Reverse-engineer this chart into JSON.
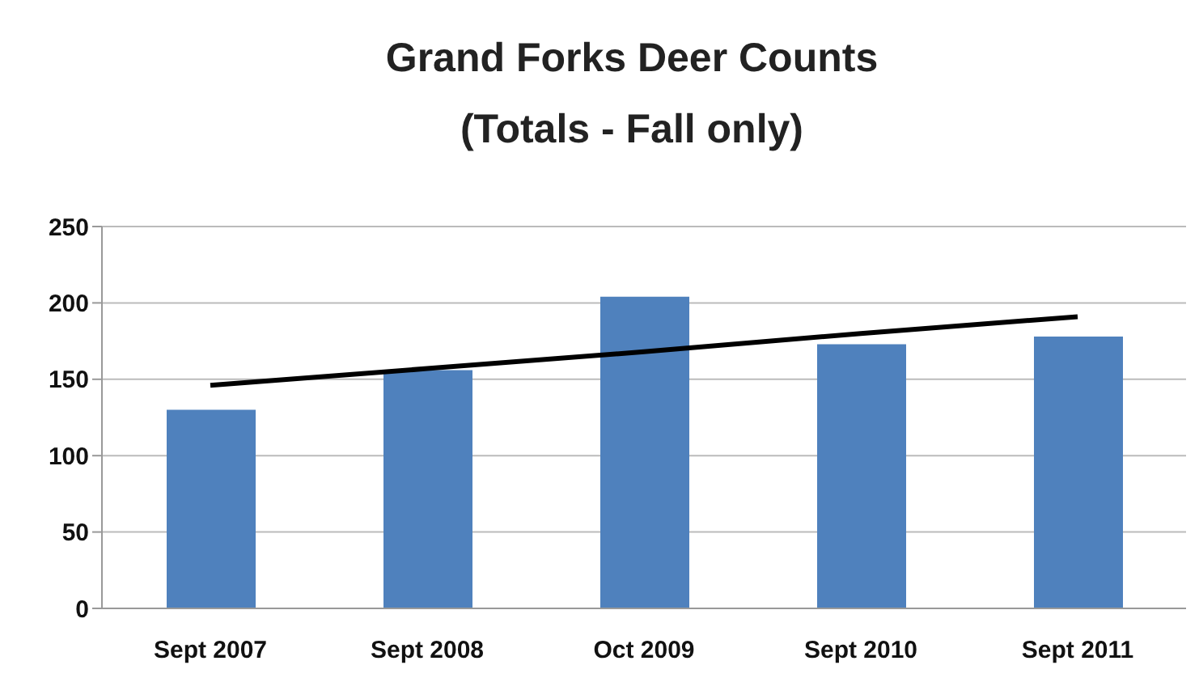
{
  "chart_data": {
    "type": "bar",
    "title": "Grand Forks Deer Counts",
    "subtitle": "(Totals - Fall only)",
    "categories": [
      "Sept 2007",
      "Sept 2008",
      "Oct 2009",
      "Sept 2010",
      "Sept 2011"
    ],
    "series": [
      {
        "color": "#4f81bd",
        "values": [
          130,
          156,
          204,
          173,
          178
        ]
      },
      {
        "type": "line",
        "color": "#000000",
        "values": [
          146,
          157,
          168,
          180,
          191
        ]
      }
    ],
    "ylim": [
      0,
      250
    ],
    "yticks": [
      0,
      50,
      100,
      150,
      200,
      250
    ],
    "grid": "y",
    "legend": false,
    "marker": "none",
    "line_style": "solid"
  }
}
